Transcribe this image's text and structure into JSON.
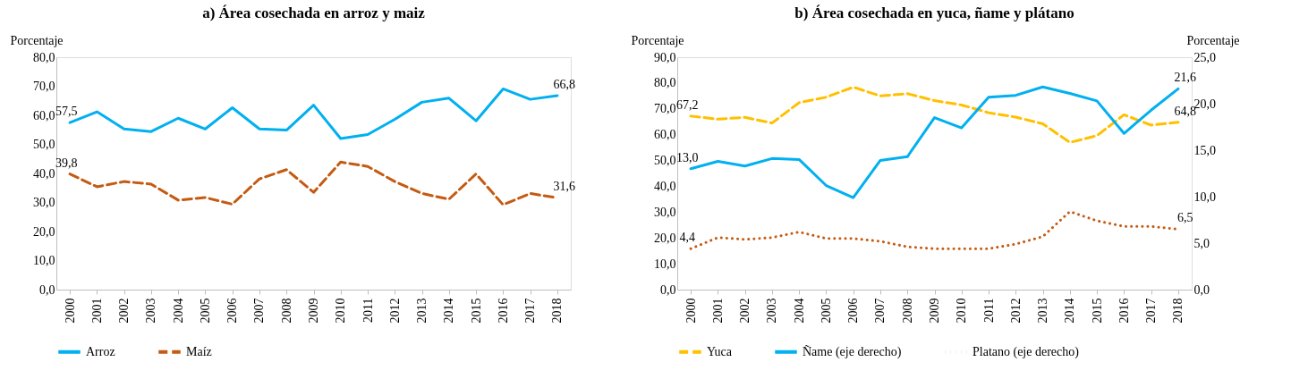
{
  "chart_data": [
    {
      "type": "line",
      "title": "a) Área cosechada en arroz y maiz",
      "ylabel": "Porcentaje",
      "categories": [
        "2000",
        "2001",
        "2002",
        "2003",
        "2004",
        "2005",
        "2006",
        "2007",
        "2008",
        "2009",
        "2010",
        "2011",
        "2012",
        "2013",
        "2014",
        "2015",
        "2016",
        "2017",
        "2018"
      ],
      "series": [
        {
          "name": "Arroz",
          "color": "#00b0f0",
          "line_style": "solid",
          "values": [
            57.5,
            61.2,
            55.3,
            54.4,
            59.0,
            55.3,
            62.6,
            55.3,
            54.9,
            63.5,
            52.0,
            53.4,
            58.6,
            64.5,
            65.9,
            58.1,
            69.1,
            65.5,
            66.8
          ],
          "value_labels": [
            "57,5",
            null,
            null,
            null,
            null,
            null,
            null,
            null,
            null,
            null,
            null,
            null,
            null,
            null,
            null,
            null,
            null,
            null,
            "66,8"
          ]
        },
        {
          "name": "Maíz",
          "color": "#c55a11",
          "line_style": "dashed",
          "values": [
            39.8,
            35.4,
            37.2,
            36.3,
            30.8,
            31.7,
            29.4,
            38.1,
            41.3,
            33.5,
            43.9,
            42.4,
            37.2,
            33.1,
            31.1,
            39.8,
            29.2,
            33.1,
            31.6
          ],
          "value_labels": [
            "39,8",
            null,
            null,
            null,
            null,
            null,
            null,
            null,
            null,
            null,
            null,
            null,
            null,
            null,
            null,
            null,
            null,
            null,
            "31,6"
          ]
        }
      ],
      "ylim": [
        0,
        80
      ],
      "yticks": [
        {
          "value": 0,
          "label": "0,0"
        },
        {
          "value": 10,
          "label": "10,0"
        },
        {
          "value": 20,
          "label": "20,0"
        },
        {
          "value": 30,
          "label": "30,0"
        },
        {
          "value": 40,
          "label": "40,0"
        },
        {
          "value": 50,
          "label": "50,0"
        },
        {
          "value": 60,
          "label": "60,0"
        },
        {
          "value": 70,
          "label": "70,0"
        },
        {
          "value": 80,
          "label": "80,0"
        }
      ],
      "grid": false,
      "legend": "bottom",
      "marker": "none"
    },
    {
      "type": "line",
      "title": "b) Área cosechada en yuca, ñame y plátano",
      "ylabel": "Porcentaje",
      "y2label": "Porcentaje",
      "categories": [
        "2000",
        "2001",
        "2002",
        "2003",
        "2004",
        "2005",
        "2006",
        "2007",
        "2008",
        "2009",
        "2010",
        "2011",
        "2012",
        "2013",
        "2014",
        "2015",
        "2016",
        "2017",
        "2018"
      ],
      "series": [
        {
          "name": "Yuca",
          "color": "#ffc000",
          "line_style": "dashed",
          "axis": "y",
          "values": [
            67.2,
            66.0,
            66.7,
            64.5,
            72.4,
            74.5,
            78.4,
            75.0,
            75.9,
            73.2,
            71.5,
            68.5,
            66.8,
            64.2,
            57.0,
            59.6,
            67.7,
            63.7,
            64.8
          ],
          "value_labels": [
            "67,2",
            null,
            null,
            null,
            null,
            null,
            null,
            null,
            null,
            null,
            null,
            null,
            null,
            null,
            null,
            null,
            null,
            null,
            "64,8"
          ]
        },
        {
          "name": "Ñame (eje derecho)",
          "color": "#00b0f0",
          "line_style": "solid",
          "axis": "y2",
          "values": [
            13.0,
            13.8,
            13.3,
            14.1,
            14.0,
            11.2,
            9.9,
            13.9,
            14.3,
            18.5,
            17.4,
            20.7,
            20.9,
            21.8,
            21.1,
            20.3,
            16.8,
            19.3,
            21.6
          ],
          "value_labels": [
            "13,0",
            null,
            null,
            null,
            null,
            null,
            null,
            null,
            null,
            null,
            null,
            null,
            null,
            null,
            null,
            null,
            null,
            null,
            "21,6"
          ]
        },
        {
          "name": "Platano (eje derecho)",
          "color": "#c55a11",
          "line_style": "dotted",
          "axis": "y2",
          "values": [
            4.4,
            5.6,
            5.4,
            5.6,
            6.2,
            5.5,
            5.5,
            5.2,
            4.6,
            4.4,
            4.4,
            4.4,
            4.9,
            5.7,
            8.4,
            7.4,
            6.8,
            6.8,
            6.5
          ],
          "value_labels": [
            "4,4",
            null,
            null,
            null,
            null,
            null,
            null,
            null,
            null,
            null,
            null,
            null,
            null,
            null,
            null,
            null,
            null,
            null,
            "6,5"
          ]
        }
      ],
      "ylim": [
        0,
        90
      ],
      "yticks": [
        {
          "value": 0,
          "label": "0,0"
        },
        {
          "value": 10,
          "label": "10,0"
        },
        {
          "value": 20,
          "label": "20,0"
        },
        {
          "value": 30,
          "label": "30,0"
        },
        {
          "value": 40,
          "label": "40,0"
        },
        {
          "value": 50,
          "label": "50,0"
        },
        {
          "value": 60,
          "label": "60,0"
        },
        {
          "value": 70,
          "label": "70,0"
        },
        {
          "value": 80,
          "label": "80,0"
        },
        {
          "value": 90,
          "label": "90,0"
        }
      ],
      "y2lim": [
        0,
        25
      ],
      "y2ticks": [
        {
          "value": 0,
          "label": "0,0"
        },
        {
          "value": 5,
          "label": "5,0"
        },
        {
          "value": 10,
          "label": "10,0"
        },
        {
          "value": 15,
          "label": "15,0"
        },
        {
          "value": 20,
          "label": "20,0"
        },
        {
          "value": 25,
          "label": "25,0"
        }
      ],
      "grid": false,
      "legend": "bottom",
      "marker": "none"
    }
  ]
}
